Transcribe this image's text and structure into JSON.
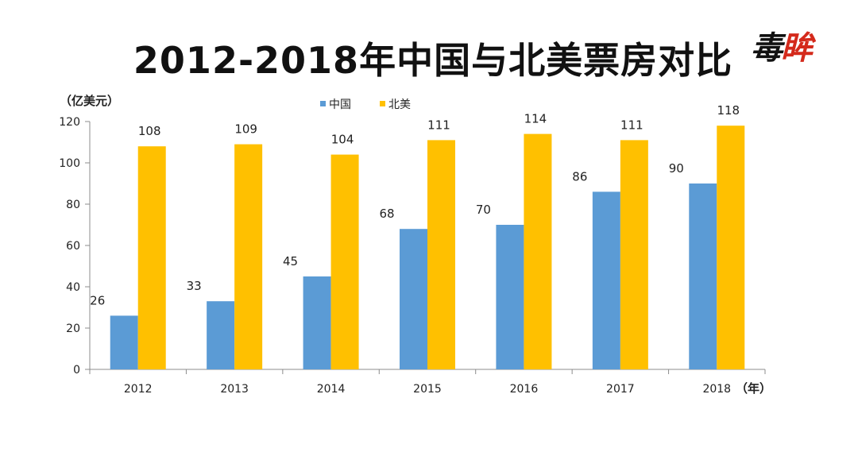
{
  "title": "2012-2018年中国与北美票房对比",
  "logo": {
    "text": "毒眸",
    "accent_char_index": 1,
    "accent_color": "#d42a1c"
  },
  "chart_data": {
    "type": "bar",
    "title": "2012-2018年中国与北美票房对比",
    "ylabel": "（亿美元）",
    "xlabel": "（年）",
    "ylim": [
      0,
      120
    ],
    "yticks": [
      0,
      20,
      40,
      60,
      80,
      100,
      120
    ],
    "grid": false,
    "legend_position": "top",
    "categories": [
      "2012",
      "2013",
      "2014",
      "2015",
      "2016",
      "2017",
      "2018"
    ],
    "series": [
      {
        "name": "中国",
        "color": "#5b9bd5",
        "values": [
          26,
          33,
          45,
          68,
          70,
          86,
          90
        ]
      },
      {
        "name": "北美",
        "color": "#ffc000",
        "values": [
          108,
          109,
          104,
          111,
          114,
          111,
          118
        ]
      }
    ]
  }
}
